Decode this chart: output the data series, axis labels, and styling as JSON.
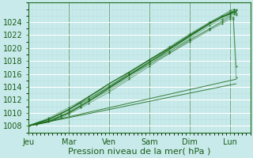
{
  "bg_color": "#c8eaea",
  "line_color": "#1a6b1a",
  "xlabel": "Pression niveau de la mer( hPa )",
  "xlabel_fontsize": 8,
  "tick_fontsize": 7,
  "ylim": [
    1007.0,
    1027.0
  ],
  "yticks": [
    1008,
    1010,
    1012,
    1014,
    1016,
    1018,
    1020,
    1022,
    1024
  ],
  "xdays": [
    "Jeu",
    "Mar",
    "Ven",
    "Sam",
    "Dim",
    "Lun"
  ],
  "day_positions": [
    0.0,
    1.0,
    2.0,
    3.0,
    4.0,
    5.0
  ],
  "xlim": [
    0,
    5.5
  ],
  "cluster_lines": [
    {
      "x": [
        0,
        0.2,
        0.5,
        0.8,
        1.0,
        1.3,
        1.5,
        2.0,
        2.5,
        3.0,
        3.5,
        4.0,
        4.5,
        4.8,
        5.0,
        5.1,
        5.15
      ],
      "y": [
        1008,
        1008.3,
        1008.8,
        1009.5,
        1010.0,
        1011.0,
        1011.8,
        1013.5,
        1015.5,
        1017.5,
        1019.5,
        1021.5,
        1023.5,
        1024.5,
        1025.2,
        1025.5,
        1025.4
      ]
    },
    {
      "x": [
        0,
        0.2,
        0.5,
        0.8,
        1.0,
        1.3,
        1.5,
        2.0,
        2.5,
        3.0,
        3.5,
        4.0,
        4.5,
        4.8,
        5.0,
        5.1,
        5.15
      ],
      "y": [
        1008,
        1008.4,
        1009.0,
        1009.8,
        1010.5,
        1011.5,
        1012.2,
        1014.0,
        1016.2,
        1018.2,
        1020.2,
        1022.2,
        1024.0,
        1025.0,
        1025.8,
        1026.0,
        1025.9
      ]
    },
    {
      "x": [
        0,
        0.2,
        0.5,
        0.8,
        1.0,
        1.3,
        1.5,
        2.0,
        2.5,
        3.0,
        3.5,
        4.0,
        4.5,
        4.8,
        5.0,
        5.1,
        5.15
      ],
      "y": [
        1008,
        1008.2,
        1008.6,
        1009.2,
        1009.8,
        1010.8,
        1011.5,
        1013.2,
        1015.2,
        1017.2,
        1019.2,
        1021.2,
        1023.0,
        1024.2,
        1025.0,
        1025.2,
        1025.1
      ]
    },
    {
      "x": [
        0,
        0.5,
        1.0,
        1.5,
        2.0,
        2.5,
        3.0,
        3.5,
        4.0,
        4.5,
        4.8,
        5.0,
        5.1,
        5.15
      ],
      "y": [
        1008,
        1008.8,
        1010.2,
        1012.0,
        1014.0,
        1016.0,
        1018.0,
        1020.0,
        1022.0,
        1024.0,
        1025.0,
        1025.6,
        1025.9,
        1025.8
      ]
    },
    {
      "x": [
        0,
        0.5,
        1.0,
        1.5,
        2.0,
        2.5,
        3.0,
        3.5,
        4.0,
        4.5,
        4.8,
        5.0,
        5.1,
        5.15
      ],
      "y": [
        1008,
        1008.6,
        1010.0,
        1011.8,
        1013.8,
        1015.8,
        1017.8,
        1019.8,
        1021.8,
        1023.8,
        1024.8,
        1025.4,
        1025.7,
        1025.6
      ]
    },
    {
      "x": [
        0,
        0.5,
        1.0,
        1.5,
        2.0,
        2.5,
        3.0,
        3.5,
        4.0,
        4.5,
        4.8,
        5.0,
        5.1,
        5.15
      ],
      "y": [
        1008,
        1009.0,
        1010.5,
        1012.5,
        1014.5,
        1016.3,
        1018.2,
        1020.0,
        1022.0,
        1023.8,
        1024.8,
        1025.3,
        1025.5,
        1025.4
      ]
    }
  ],
  "drop_lines": [
    {
      "x": [
        0,
        0.5,
        1.0,
        1.5,
        2.0,
        2.5,
        3.0,
        3.5,
        4.0,
        4.5,
        4.8,
        5.0,
        5.08,
        5.15
      ],
      "y": [
        1008,
        1009.2,
        1010.8,
        1012.5,
        1014.2,
        1016.0,
        1017.8,
        1019.5,
        1021.3,
        1023.0,
        1024.0,
        1024.8,
        1024.8,
        1017.2
      ]
    },
    {
      "x": [
        0,
        0.5,
        1.0,
        1.5,
        2.0,
        2.5,
        3.0,
        3.5,
        4.0,
        4.5,
        4.8,
        5.0,
        5.08,
        5.15
      ],
      "y": [
        1008,
        1009.0,
        1010.5,
        1012.2,
        1014.0,
        1015.8,
        1017.5,
        1019.2,
        1021.0,
        1022.8,
        1023.8,
        1024.5,
        1024.5,
        1015.5
      ]
    }
  ],
  "low_lines": [
    {
      "x": [
        0,
        5.15
      ],
      "y": [
        1008,
        1015.2
      ]
    },
    {
      "x": [
        0,
        5.15
      ],
      "y": [
        1008,
        1014.5
      ]
    }
  ]
}
